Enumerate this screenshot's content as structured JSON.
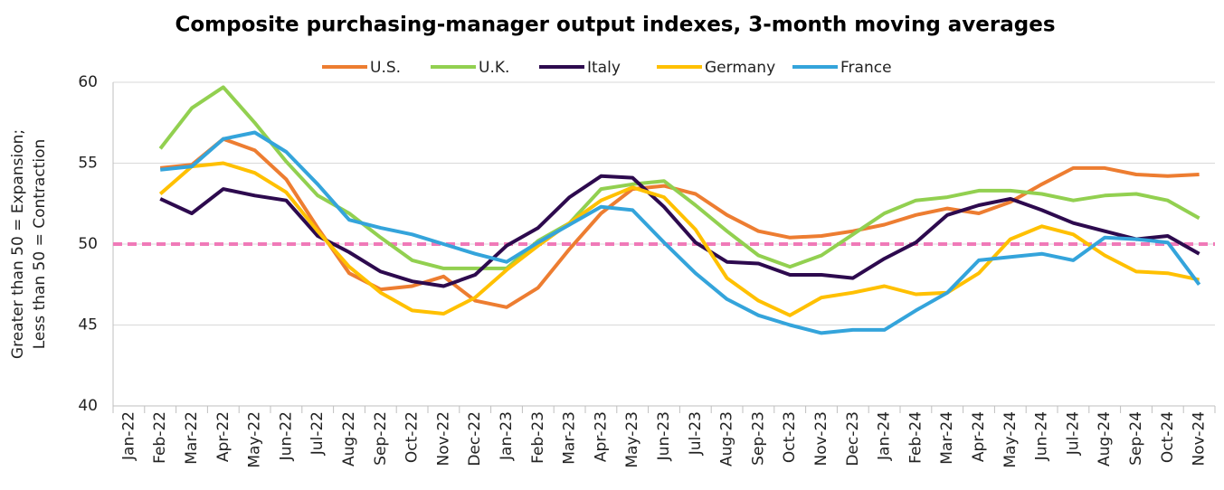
{
  "chart_data": {
    "type": "line",
    "title": "Composite purchasing-manager output indexes, 3-month moving averages",
    "ylabel": [
      "Greater than 50 = Expansion;",
      "Less than 50 = Contraction"
    ],
    "categories": [
      "Jan-22",
      "Feb-22",
      "Mar-22",
      "Apr-22",
      "May-22",
      "Jun-22",
      "Jul-22",
      "Aug-22",
      "Sep-22",
      "Oct-22",
      "Nov-22",
      "Dec-22",
      "Jan-23",
      "Feb-23",
      "Mar-23",
      "Apr-23",
      "May-23",
      "Jun-23",
      "Jul-23",
      "Aug-23",
      "Sep-23",
      "Oct-23",
      "Nov-23",
      "Dec-23",
      "Jan-24",
      "Feb-24",
      "Mar-24",
      "Apr-24",
      "May-24",
      "Jun-24",
      "Jul-24",
      "Aug-24",
      "Sep-24",
      "Oct-24",
      "Nov-24"
    ],
    "series": [
      {
        "name": "U.S.",
        "color": "#ed7d31",
        "values": [
          null,
          54.7,
          54.9,
          56.5,
          55.8,
          54.0,
          51.0,
          48.2,
          47.2,
          47.4,
          48.0,
          46.5,
          46.1,
          47.3,
          49.7,
          51.9,
          53.4,
          53.6,
          53.1,
          51.8,
          50.8,
          50.4,
          50.5,
          50.8,
          51.2,
          51.8,
          52.2,
          51.9,
          52.6,
          53.7,
          54.7,
          54.7,
          54.3,
          54.2,
          54.3
        ]
      },
      {
        "name": "U.K.",
        "color": "#92d050",
        "values": [
          null,
          55.9,
          58.4,
          59.7,
          57.5,
          55.1,
          53.0,
          51.9,
          50.4,
          49.0,
          48.5,
          48.5,
          48.5,
          50.2,
          51.3,
          53.4,
          53.7,
          53.9,
          52.4,
          50.8,
          49.3,
          48.6,
          49.3,
          50.6,
          51.9,
          52.7,
          52.9,
          53.3,
          53.3,
          53.1,
          52.7,
          53.0,
          53.1,
          52.7,
          51.6
        ]
      },
      {
        "name": "Italy",
        "color": "#2d0a4e",
        "values": [
          null,
          52.8,
          51.9,
          53.4,
          53.0,
          52.7,
          50.5,
          49.5,
          48.3,
          47.7,
          47.4,
          48.1,
          49.9,
          51.0,
          52.9,
          54.2,
          54.1,
          52.3,
          50.1,
          48.9,
          48.8,
          48.1,
          48.1,
          47.9,
          49.1,
          50.1,
          51.8,
          52.4,
          52.8,
          52.1,
          51.3,
          50.8,
          50.3,
          50.5,
          49.4
        ]
      },
      {
        "name": "Germany",
        "color": "#ffc000",
        "values": [
          null,
          53.1,
          54.8,
          55.0,
          54.4,
          53.2,
          50.8,
          48.6,
          47.0,
          45.9,
          45.7,
          46.7,
          48.4,
          49.9,
          51.3,
          52.7,
          53.5,
          52.9,
          50.9,
          47.9,
          46.5,
          45.6,
          46.7,
          47.0,
          47.4,
          46.9,
          47.0,
          48.2,
          50.3,
          51.1,
          50.6,
          49.3,
          48.3,
          48.2,
          47.8
        ]
      },
      {
        "name": "France",
        "color": "#34a4db",
        "values": [
          null,
          54.6,
          54.8,
          56.5,
          56.9,
          55.7,
          53.7,
          51.5,
          51.0,
          50.6,
          50.0,
          49.4,
          48.9,
          50.1,
          51.2,
          52.3,
          52.1,
          50.1,
          48.2,
          46.6,
          45.6,
          45.0,
          44.5,
          44.7,
          44.7,
          45.9,
          47.0,
          49.0,
          49.2,
          49.4,
          49.0,
          50.4,
          50.3,
          50.1,
          47.5
        ]
      }
    ],
    "reference_line": {
      "value": 50,
      "color": "#f07ab8"
    },
    "ylim": [
      40,
      60
    ],
    "yticks": [
      40,
      45,
      50,
      55,
      60
    ],
    "grid": true,
    "legend": "top"
  }
}
